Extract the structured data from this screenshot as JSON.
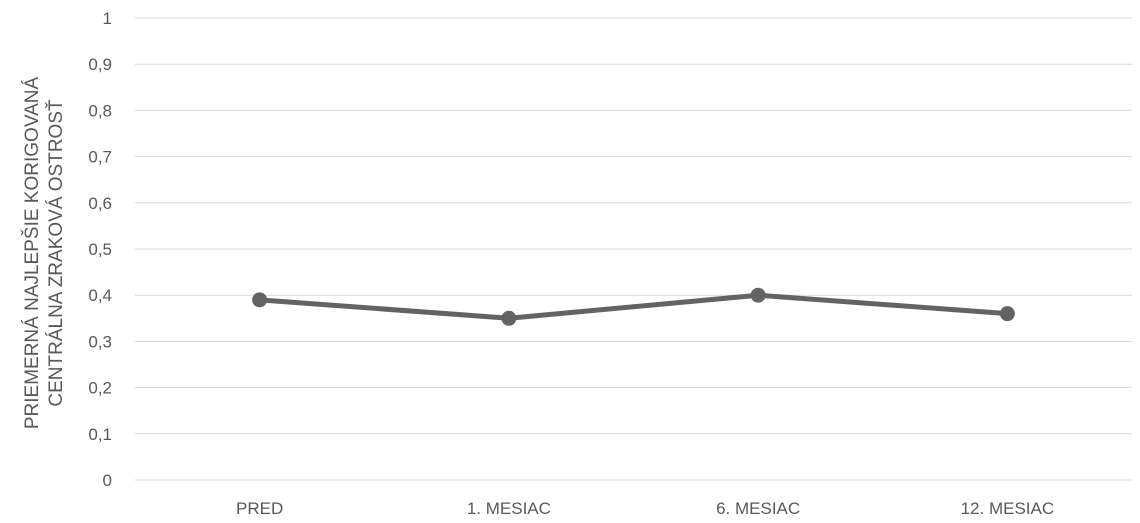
{
  "chart_data": {
    "type": "line",
    "categories": [
      "PRED",
      "1. MESIAC",
      "6. MESIAC",
      "12. MESIAC"
    ],
    "series": [
      {
        "values": [
          0.39,
          0.35,
          0.4,
          0.36
        ]
      }
    ],
    "title": "",
    "xlabel": "",
    "ylabel_line1": "PRIEMERNÁ NAJLEPŠIE KORIGOVANÁ",
    "ylabel_line2": "CENTRÁLNA ZRAKOVÁ OSTROSŤ",
    "ylim": [
      0,
      1
    ],
    "yticks": [
      "0",
      "0,1",
      "0,2",
      "0,3",
      "0,4",
      "0,5",
      "0,6",
      "0,7",
      "0,8",
      "0,9",
      "1"
    ],
    "grid": true,
    "legend": "none",
    "colors": {
      "series": "#636363",
      "grid": "#d9d9d9",
      "text": "#595959"
    }
  }
}
